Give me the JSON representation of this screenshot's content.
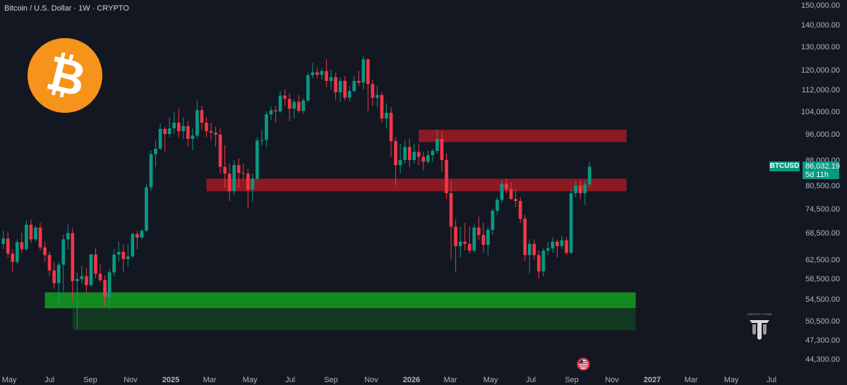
{
  "header": {
    "title": "Bitcoin / U.S. Dollar · 1W · CRYPTO"
  },
  "icons": {
    "logo": "bitcoin-logo-icon",
    "brand": "crypto-titan-logo-icon",
    "event": "us-flag-event-icon"
  },
  "brand": {
    "text": "CRYPTO TITAN"
  },
  "ticker": {
    "symbol": "BTCUSD",
    "price": "86,032.19",
    "countdown": "5d 11h"
  },
  "colors": {
    "background": "#131722",
    "up": "#089981",
    "down": "#f23645",
    "resistance_zone": "#8b1a24",
    "support_zone": "#128a1f",
    "support_zone_dark": "#123822",
    "bitcoin_orange": "#f7931a"
  },
  "chart_data": {
    "type": "candlestick",
    "title": "Bitcoin / U.S. Dollar · 1W · CRYPTO",
    "xlabel": "",
    "ylabel": "",
    "y_axis_labels": [
      "150,000.00",
      "140,000.00",
      "130,000.00",
      "120,000.00",
      "112,000.00",
      "104,000.00",
      "96,000.00",
      "88,000.00",
      "80,500.00",
      "74,500.00",
      "68,500.00",
      "62,500.00",
      "58,500.00",
      "54,500.00",
      "50,500.00",
      "47,300.00",
      "44,300.00"
    ],
    "x_axis_labels": [
      "May",
      "Jul",
      "Sep",
      "Nov",
      "2025",
      "Mar",
      "May",
      "Jul",
      "Sep",
      "Nov",
      "2026",
      "Mar",
      "May",
      "Jul",
      "Sep",
      "Nov",
      "2027",
      "Mar",
      "May",
      "Jul"
    ],
    "current_price": 86032.19,
    "zones": [
      {
        "kind": "resistance",
        "from": "2026-01-12",
        "to": "2026-11-23",
        "low": 93500,
        "high": 97500
      },
      {
        "kind": "resistance",
        "from": "2025-02-24",
        "to": "2026-11-23",
        "low": 79000,
        "high": 82500
      },
      {
        "kind": "support",
        "from": "2024-06-24",
        "to": "2026-12-07",
        "low": 52800,
        "high": 55800
      },
      {
        "kind": "support-extension",
        "from": "2024-08-05",
        "to": "2026-12-07",
        "low": 48900,
        "high": 52800
      }
    ],
    "candles": [
      [
        66000,
        69000,
        64800,
        67200
      ],
      [
        67200,
        68800,
        63000,
        63800
      ],
      [
        63800,
        64800,
        60000,
        62000
      ],
      [
        62000,
        67000,
        61500,
        66400
      ],
      [
        66400,
        68500,
        64000,
        64800
      ],
      [
        64800,
        71500,
        64500,
        70500
      ],
      [
        70500,
        71800,
        66200,
        67000
      ],
      [
        67000,
        70200,
        66500,
        69800
      ],
      [
        69800,
        71000,
        64500,
        65200
      ],
      [
        65200,
        66500,
        62000,
        63500
      ],
      [
        63500,
        64200,
        59000,
        60200
      ],
      [
        60200,
        62000,
        56500,
        57600
      ],
      [
        57600,
        62000,
        53500,
        61400
      ],
      [
        61400,
        68000,
        56000,
        67000
      ],
      [
        67000,
        70500,
        64800,
        68400
      ],
      [
        68400,
        69800,
        54300,
        58000
      ],
      [
        58000,
        59800,
        49100,
        58400
      ],
      [
        58400,
        61200,
        57600,
        59000
      ],
      [
        59000,
        60800,
        55800,
        57200
      ],
      [
        57200,
        63800,
        57000,
        63600
      ],
      [
        63600,
        65000,
        58500,
        59500
      ],
      [
        59500,
        61500,
        57800,
        58200
      ],
      [
        58200,
        59200,
        53000,
        54800
      ],
      [
        54800,
        60500,
        52600,
        59800
      ],
      [
        59800,
        64800,
        59000,
        63600
      ],
      [
        63600,
        66500,
        62000,
        64200
      ],
      [
        64200,
        65800,
        59800,
        62600
      ],
      [
        62600,
        66000,
        61000,
        63200
      ],
      [
        63200,
        68500,
        62800,
        68200
      ],
      [
        68200,
        69000,
        64800,
        67400
      ],
      [
        67400,
        69500,
        67000,
        69000
      ],
      [
        69000,
        81000,
        68600,
        80000
      ],
      [
        80000,
        91000,
        79000,
        89800
      ],
      [
        89800,
        94000,
        86000,
        91500
      ],
      [
        91500,
        99800,
        91000,
        97800
      ],
      [
        97800,
        98500,
        90500,
        96000
      ],
      [
        96000,
        102000,
        95000,
        98000
      ],
      [
        98000,
        104000,
        96000,
        100000
      ],
      [
        100000,
        105000,
        95000,
        97000
      ],
      [
        97000,
        102000,
        94500,
        98800
      ],
      [
        98800,
        100500,
        92000,
        94500
      ],
      [
        94500,
        98000,
        91000,
        95500
      ],
      [
        95500,
        108000,
        94500,
        104500
      ],
      [
        104500,
        106000,
        97500,
        100000
      ],
      [
        100000,
        102000,
        95000,
        97000
      ],
      [
        97000,
        100000,
        94000,
        96500
      ],
      [
        96500,
        98500,
        92000,
        95800
      ],
      [
        95800,
        98000,
        84000,
        86000
      ],
      [
        86000,
        92500,
        80000,
        84000
      ],
      [
        84000,
        87000,
        76500,
        79000
      ],
      [
        79000,
        88000,
        78000,
        86500
      ],
      [
        86500,
        88500,
        80000,
        84200
      ],
      [
        84200,
        87000,
        82000,
        84000
      ],
      [
        84000,
        85500,
        74500,
        79500
      ],
      [
        79500,
        84000,
        76500,
        82500
      ],
      [
        82500,
        95000,
        82000,
        94000
      ],
      [
        94000,
        97500,
        92500,
        94200
      ],
      [
        94200,
        104000,
        92000,
        103000
      ],
      [
        103000,
        105800,
        101000,
        104400
      ],
      [
        104400,
        106000,
        100000,
        104000
      ],
      [
        104000,
        111500,
        103500,
        109800
      ],
      [
        109800,
        112000,
        106000,
        108600
      ],
      [
        108600,
        110500,
        100500,
        105000
      ],
      [
        105000,
        108500,
        101500,
        107500
      ],
      [
        107500,
        110000,
        103500,
        104200
      ],
      [
        104200,
        108800,
        103000,
        108000
      ],
      [
        108000,
        119000,
        107500,
        117800
      ],
      [
        117800,
        123000,
        116500,
        119000
      ],
      [
        119000,
        121000,
        116500,
        118000
      ],
      [
        118000,
        120500,
        116000,
        119500
      ],
      [
        119500,
        124500,
        113000,
        115500
      ],
      [
        115500,
        120000,
        112000,
        117000
      ],
      [
        117000,
        118800,
        108000,
        111000
      ],
      [
        111000,
        116800,
        107500,
        115500
      ],
      [
        115500,
        117500,
        108000,
        109000
      ],
      [
        109000,
        113500,
        107500,
        111500
      ],
      [
        111500,
        117500,
        111000,
        115500
      ],
      [
        115500,
        119500,
        113500,
        114800
      ],
      [
        114800,
        126000,
        112000,
        124500
      ],
      [
        124500,
        125000,
        104000,
        114200
      ],
      [
        114200,
        116000,
        106000,
        109000
      ],
      [
        109000,
        113500,
        105500,
        110000
      ],
      [
        110000,
        111000,
        100000,
        101500
      ],
      [
        101500,
        107000,
        98000,
        103500
      ],
      [
        103500,
        105500,
        89000,
        93800
      ],
      [
        93800,
        95000,
        80600,
        86500
      ],
      [
        86500,
        93000,
        84000,
        88000
      ],
      [
        88000,
        94000,
        87000,
        92000
      ],
      [
        92000,
        94500,
        86000,
        88000
      ],
      [
        88000,
        93000,
        87000,
        90500
      ],
      [
        90500,
        93000,
        86500,
        89000
      ],
      [
        89000,
        90500,
        85000,
        87500
      ],
      [
        87500,
        91000,
        87000,
        89500
      ],
      [
        89500,
        91500,
        87500,
        90800
      ],
      [
        90800,
        97500,
        90000,
        94500
      ],
      [
        94500,
        97000,
        84500,
        88000
      ],
      [
        88000,
        90000,
        77000,
        78500
      ],
      [
        78500,
        82000,
        62500,
        70000
      ],
      [
        70000,
        71800,
        59800,
        65500
      ],
      [
        65500,
        70000,
        63000,
        66500
      ],
      [
        66500,
        71000,
        64500,
        66000
      ],
      [
        66000,
        70000,
        63800,
        64500
      ],
      [
        64500,
        70500,
        64000,
        69800
      ],
      [
        69800,
        72500,
        66800,
        68000
      ],
      [
        68000,
        71000,
        64000,
        65800
      ],
      [
        65800,
        70000,
        63500,
        69200
      ],
      [
        69200,
        74500,
        68000,
        74000
      ],
      [
        74000,
        77500,
        73000,
        76800
      ],
      [
        76800,
        82000,
        76000,
        81000
      ],
      [
        81000,
        82500,
        78500,
        79500
      ],
      [
        79500,
        81500,
        76800,
        77000
      ],
      [
        77000,
        79500,
        75000,
        76500
      ],
      [
        76500,
        77500,
        71000,
        72000
      ],
      [
        72000,
        73000,
        62200,
        63500
      ],
      [
        63500,
        67000,
        59500,
        66000
      ],
      [
        66000,
        67000,
        62500,
        63500
      ],
      [
        63500,
        64500,
        58500,
        60000
      ],
      [
        60000,
        65000,
        59000,
        64500
      ],
      [
        64500,
        66500,
        63500,
        65000
      ],
      [
        65000,
        67500,
        64000,
        66500
      ],
      [
        66500,
        67000,
        63000,
        65500
      ],
      [
        65500,
        67800,
        64800,
        66800
      ],
      [
        66800,
        67500,
        63500,
        64000
      ],
      [
        64000,
        79500,
        63800,
        78500
      ],
      [
        78500,
        82000,
        77500,
        80500
      ],
      [
        80500,
        82000,
        77000,
        78500
      ],
      [
        78500,
        82000,
        75500,
        80800
      ],
      [
        80800,
        87500,
        80000,
        86032
      ]
    ],
    "candle_start": "2024-04-22",
    "candle_interval_days": 7
  }
}
